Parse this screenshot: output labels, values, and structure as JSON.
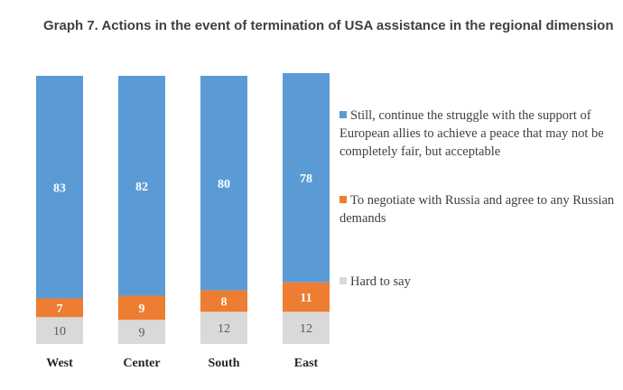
{
  "chart_data": {
    "type": "bar",
    "stacked": true,
    "percent": true,
    "title": "Graph 7. Actions in the event of termination of USA assistance in the regional dimension",
    "categories": [
      "West",
      "Center",
      "South",
      "East"
    ],
    "series": [
      {
        "name": "Still, continue the struggle with the support of European allies to achieve a peace that may not be completely fair, but acceptable",
        "values": [
          83,
          82,
          80,
          78
        ],
        "color": "#5b9bd5"
      },
      {
        "name": "To negotiate with Russia and agree to any Russian demands",
        "values": [
          7,
          9,
          8,
          11
        ],
        "color": "#ed7d31"
      },
      {
        "name": "Hard to say",
        "values": [
          10,
          9,
          12,
          12
        ],
        "color": "#d9d9d9"
      }
    ],
    "ylim": [
      0,
      100
    ],
    "grid": false,
    "legend_position": "right"
  }
}
